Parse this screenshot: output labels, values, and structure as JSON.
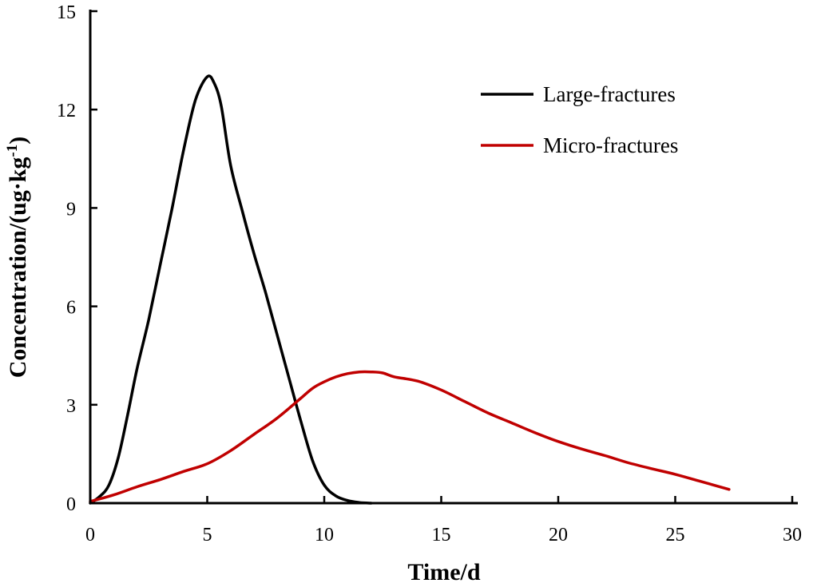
{
  "chart_data": {
    "type": "line",
    "title": "",
    "xlabel": "Time/d",
    "ylabel_main": "Concentration/(ug·kg",
    "ylabel_sup": "-1",
    "ylabel_close": ")",
    "xlim": [
      0,
      30
    ],
    "ylim": [
      0,
      15
    ],
    "xticks": [
      0,
      5,
      10,
      15,
      20,
      25,
      30
    ],
    "yticks": [
      0,
      3,
      6,
      9,
      12,
      15
    ],
    "grid": false,
    "legend_position": "top-right",
    "series": [
      {
        "name": "Large-fractures",
        "color": "#000000",
        "x": [
          0,
          0.4,
          0.8,
          1.2,
          1.6,
          2.0,
          2.5,
          3.0,
          3.5,
          4.0,
          4.5,
          5.0,
          5.3,
          5.6,
          6.0,
          6.5,
          7.0,
          7.5,
          8.0,
          8.5,
          9.0,
          9.5,
          10.0,
          10.5,
          11.0,
          11.5,
          12.0
        ],
        "y": [
          0,
          0.2,
          0.55,
          1.4,
          2.7,
          4.1,
          5.6,
          7.3,
          9.0,
          10.8,
          12.3,
          13.0,
          12.8,
          12.1,
          10.3,
          8.9,
          7.6,
          6.4,
          5.1,
          3.8,
          2.5,
          1.3,
          0.55,
          0.22,
          0.08,
          0.02,
          0.0
        ]
      },
      {
        "name": "Micro-fractures",
        "color": "#c00000",
        "x": [
          0,
          1.0,
          2.0,
          3.0,
          4.0,
          5.0,
          6.0,
          7.0,
          8.0,
          9.0,
          9.5,
          10.0,
          10.5,
          11.0,
          11.5,
          12.0,
          12.5,
          13.0,
          14.0,
          15.0,
          16.0,
          17.0,
          18.0,
          19.0,
          20.0,
          21.0,
          22.0,
          23.0,
          24.0,
          25.0,
          26.0,
          27.3
        ],
        "y": [
          0.05,
          0.25,
          0.5,
          0.72,
          0.97,
          1.2,
          1.6,
          2.1,
          2.6,
          3.2,
          3.5,
          3.7,
          3.85,
          3.95,
          4.0,
          4.0,
          3.97,
          3.85,
          3.72,
          3.45,
          3.1,
          2.75,
          2.45,
          2.15,
          1.88,
          1.65,
          1.45,
          1.23,
          1.05,
          0.88,
          0.68,
          0.42
        ]
      }
    ]
  }
}
